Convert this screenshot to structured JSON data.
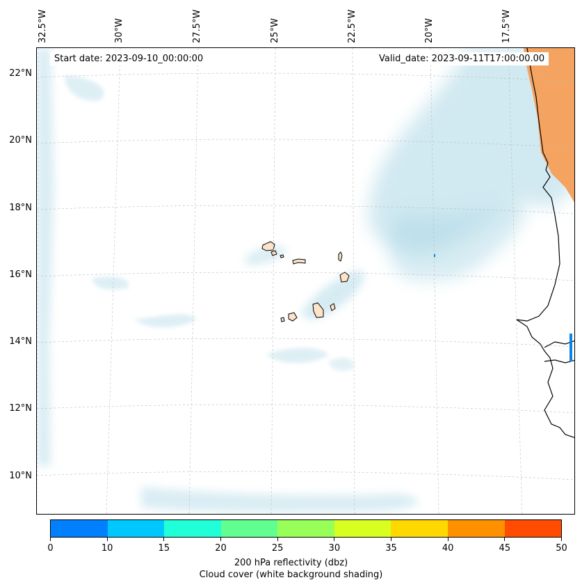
{
  "map": {
    "start_date": "Start date: 2023-09-10_00:00:00",
    "valid_date": "Valid_date: 2023-09-11T17:00:00.00",
    "lon_labels": [
      "32.5°W",
      "30°W",
      "27.5°W",
      "25°W",
      "22.5°W",
      "20°W",
      "17.5°W"
    ],
    "lat_labels": [
      "22°N",
      "20°N",
      "18°N",
      "16°N",
      "14°N",
      "12°N",
      "10°N"
    ],
    "land_color": "#f4a460",
    "cloud_color": "#add8e6",
    "coast_color": "#000000"
  },
  "colorbar": {
    "ticks": [
      "0",
      "10",
      "15",
      "20",
      "25",
      "30",
      "35",
      "40",
      "45",
      "50"
    ],
    "colors": [
      "#0080ff",
      "#00c8ff",
      "#20ffd8",
      "#60ff90",
      "#98ff58",
      "#d8ff20",
      "#ffd800",
      "#ff9000",
      "#ff4c00"
    ],
    "label": "200 hPa reflectivity (dbz)",
    "sublabel": "Cloud cover (white background shading)"
  }
}
